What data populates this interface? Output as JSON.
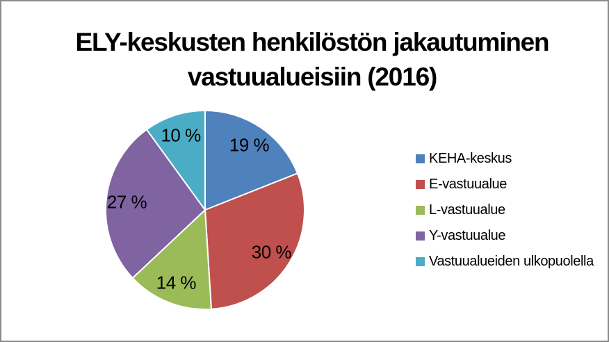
{
  "chart_data": {
    "type": "pie",
    "title": "ELY-keskusten henkilöstön jakautuminen vastuualueisiin (2016)",
    "title_lines": [
      "ELY-keskusten henkilöstön jakautuminen",
      "vastuualueisiin (2016)"
    ],
    "unit": "%",
    "start_angle_deg": 0,
    "direction": "clockwise",
    "legend_position": "right",
    "series": [
      {
        "label": "KEHA-keskus",
        "value": 19,
        "data_label": "19 %",
        "color": "#4F81BD"
      },
      {
        "label": "E-vastuualue",
        "value": 30,
        "data_label": "30 %",
        "color": "#C0504D"
      },
      {
        "label": "L-vastuualue",
        "value": 14,
        "data_label": "14 %",
        "color": "#9BBB59"
      },
      {
        "label": "Y-vastuualue",
        "value": 27,
        "data_label": "27 %",
        "color": "#8064A2"
      },
      {
        "label": "Vastuualueiden ulkopuolella",
        "value": 10,
        "data_label": "10 %",
        "color": "#4BACC6"
      }
    ],
    "slice_border_color": "#ffffff",
    "frame_border_color": "#8a8a8a",
    "background_color": "#ffffff"
  }
}
